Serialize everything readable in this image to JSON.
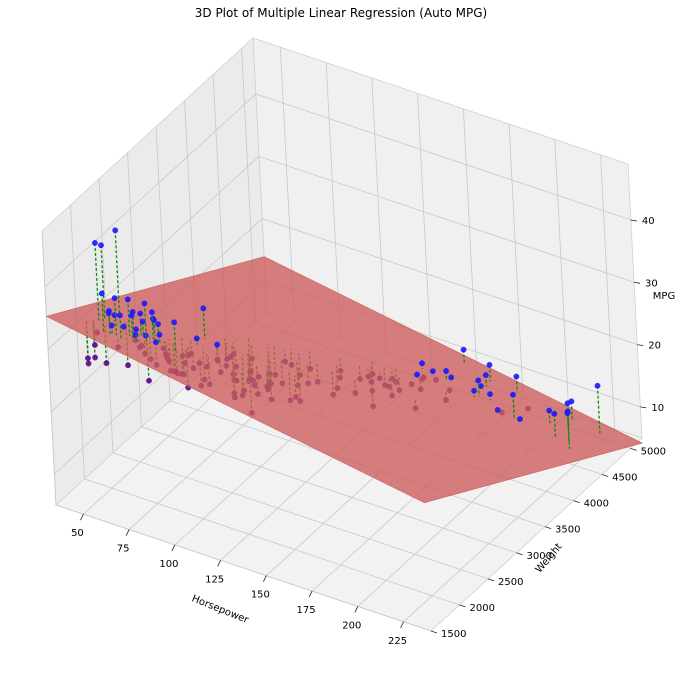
{
  "chart_data": {
    "type": "scatter",
    "title": "3D Plot of Multiple Linear Regression (Auto MPG)",
    "xlabel": "Horsepower",
    "ylabel": "Weight",
    "zlabel": "MPG",
    "xlim": [
      35,
      240
    ],
    "ylim": [
      1500,
      5200
    ],
    "zlim": [
      5,
      49
    ],
    "x_ticks": [
      "50",
      "75",
      "100",
      "125",
      "150",
      "175",
      "200",
      "225"
    ],
    "y_ticks": [
      "1500",
      "2000",
      "2500",
      "3000",
      "3500",
      "4000",
      "4500",
      "5000"
    ],
    "z_ticks": [
      "10",
      "20",
      "30",
      "40"
    ],
    "regression_plane": {
      "intercept": 45.64,
      "coef_horsepower": -0.0473,
      "coef_weight": -0.00579,
      "color": "#cd5c5c"
    },
    "series": [
      {
        "kind": "observed",
        "color_above": "#1a1aff",
        "color_below": "#5a0a8a",
        "points": [
          [
            46,
            1835,
            26
          ],
          [
            46,
            1950,
            26
          ],
          [
            48,
            2085,
            43.1
          ],
          [
            48,
            2335,
            43.4
          ],
          [
            48,
            1985,
            44.3
          ],
          [
            49,
            1867,
            29
          ],
          [
            52,
            2130,
            31.9
          ],
          [
            52,
            1649,
            29
          ],
          [
            52,
            2035,
            33
          ],
          [
            53,
            1795,
            32
          ],
          [
            53,
            1925,
            26
          ],
          [
            54,
            2254,
            23
          ],
          [
            58,
            1755,
            39.1
          ],
          [
            60,
            1800,
            36.1
          ],
          [
            60,
            1834,
            33.5
          ],
          [
            61,
            2003,
            32
          ],
          [
            62,
            1845,
            38
          ],
          [
            63,
            2125,
            29
          ],
          [
            65,
            1773,
            31
          ],
          [
            65,
            1975,
            37
          ],
          [
            65,
            2045,
            34.4
          ],
          [
            65,
            2380,
            30.5
          ],
          [
            66,
            1800,
            36
          ],
          [
            67,
            1963,
            34.7
          ],
          [
            67,
            2110,
            33.8
          ],
          [
            67,
            2145,
            32.2
          ],
          [
            68,
            1985,
            31.5
          ],
          [
            68,
            2155,
            30
          ],
          [
            68,
            2045,
            29
          ],
          [
            69,
            2189,
            26
          ],
          [
            70,
            1937,
            33
          ],
          [
            70,
            2070,
            28
          ],
          [
            70,
            2245,
            31.9
          ],
          [
            71,
            1990,
            30
          ],
          [
            71,
            2223,
            25
          ],
          [
            72,
            2050,
            24
          ],
          [
            72,
            2158,
            34.1
          ],
          [
            74,
            1980,
            37.2
          ],
          [
            74,
            2190,
            32.1
          ],
          [
            75,
            2108,
            30
          ],
          [
            75,
            2230,
            28
          ],
          [
            75,
            2265,
            26.8
          ],
          [
            75,
            2335,
            23.5
          ],
          [
            76,
            2144,
            31
          ],
          [
            76,
            2511,
            24.5
          ],
          [
            78,
            2188,
            27.2
          ],
          [
            78,
            2300,
            24
          ],
          [
            80,
            2164,
            27
          ],
          [
            80,
            2265,
            24.5
          ],
          [
            80,
            2542,
            25
          ],
          [
            82,
            2720,
            31
          ],
          [
            83,
            2202,
            25
          ],
          [
            84,
            2370,
            26.6
          ],
          [
            84,
            2525,
            28
          ],
          [
            85,
            2130,
            34
          ],
          [
            85,
            2310,
            22
          ],
          [
            85,
            2965,
            20
          ],
          [
            86,
            2220,
            25
          ],
          [
            88,
            2130,
            26
          ],
          [
            88,
            2500,
            22
          ],
          [
            88,
            2740,
            23
          ],
          [
            88,
            2890,
            22
          ],
          [
            90,
            2123,
            28
          ],
          [
            90,
            2264,
            26
          ],
          [
            90,
            2670,
            24
          ],
          [
            90,
            2950,
            22.5
          ],
          [
            90,
            3210,
            17.5
          ],
          [
            92,
            2434,
            25
          ],
          [
            92,
            2620,
            27
          ],
          [
            92,
            2865,
            20.2
          ],
          [
            95,
            2228,
            24
          ],
          [
            95,
            2372,
            23
          ],
          [
            95,
            2830,
            22
          ],
          [
            95,
            3102,
            21
          ],
          [
            96,
            2189,
            28
          ],
          [
            97,
            2506,
            24
          ],
          [
            97,
            2679,
            25
          ],
          [
            98,
            2945,
            19
          ],
          [
            100,
            2634,
            22
          ],
          [
            100,
            2789,
            19
          ],
          [
            100,
            2901,
            20
          ],
          [
            100,
            3233,
            18
          ],
          [
            100,
            3329,
            17
          ],
          [
            103,
            2830,
            22
          ],
          [
            105,
            2800,
            21
          ],
          [
            105,
            3070,
            18.5
          ],
          [
            105,
            3353,
            19.4
          ],
          [
            105,
            3459,
            18
          ],
          [
            107,
            2464,
            24
          ],
          [
            108,
            2391,
            22
          ],
          [
            110,
            2600,
            18
          ],
          [
            110,
            2720,
            20
          ],
          [
            110,
            2945,
            19.8
          ],
          [
            110,
            3139,
            18.2
          ],
          [
            110,
            3440,
            17
          ],
          [
            110,
            3620,
            16.5
          ],
          [
            112,
            2835,
            20
          ],
          [
            113,
            2234,
            24.5
          ],
          [
            113,
            2372,
            23
          ],
          [
            115,
            2595,
            24.3
          ],
          [
            115,
            2795,
            19
          ],
          [
            115,
            3245,
            17.5
          ],
          [
            116,
            2700,
            22
          ],
          [
            120,
            2957,
            18
          ],
          [
            120,
            3121,
            16.5
          ],
          [
            120,
            3270,
            18.1
          ],
          [
            120,
            3430,
            17
          ],
          [
            120,
            3820,
            15.5
          ],
          [
            122,
            2310,
            26
          ],
          [
            125,
            2900,
            19.5
          ],
          [
            125,
            3605,
            15
          ],
          [
            129,
            3410,
            16
          ],
          [
            130,
            3504,
            18
          ],
          [
            130,
            3840,
            15
          ],
          [
            130,
            4054,
            14
          ],
          [
            133,
            3940,
            14
          ],
          [
            135,
            3830,
            16
          ],
          [
            137,
            4042,
            13
          ],
          [
            139,
            3900,
            15.5
          ],
          [
            140,
            3449,
            17
          ],
          [
            140,
            3735,
            15
          ],
          [
            140,
            4080,
            14
          ],
          [
            140,
            4141,
            13
          ],
          [
            145,
            3870,
            15
          ],
          [
            145,
            4040,
            13
          ],
          [
            145,
            4440,
            14
          ],
          [
            148,
            4257,
            14
          ],
          [
            149,
            4335,
            13
          ],
          [
            150,
            3433,
            16
          ],
          [
            150,
            3761,
            15
          ],
          [
            150,
            4096,
            14
          ],
          [
            150,
            4464,
            13
          ],
          [
            150,
            4997,
            12
          ],
          [
            152,
            4215,
            14
          ],
          [
            153,
            4154,
            13
          ],
          [
            155,
            4360,
            13
          ],
          [
            158,
            4445,
            14
          ],
          [
            160,
            4464,
            13
          ],
          [
            165,
            3693,
            15
          ],
          [
            165,
            4209,
            12
          ],
          [
            165,
            4274,
            13
          ],
          [
            167,
            4906,
            12
          ],
          [
            170,
            4654,
            11
          ],
          [
            170,
            4746,
            12
          ],
          [
            175,
            4385,
            13
          ],
          [
            175,
            4464,
            14
          ],
          [
            180,
            4499,
            12
          ],
          [
            180,
            4955,
            11
          ],
          [
            190,
            4312,
            12
          ],
          [
            190,
            4382,
            11
          ],
          [
            193,
            4732,
            9
          ],
          [
            198,
            4341,
            15
          ],
          [
            200,
            4376,
            11
          ],
          [
            208,
            4633,
            11
          ],
          [
            210,
            4952,
            10
          ],
          [
            215,
            4735,
            12
          ],
          [
            220,
            4354,
            14
          ],
          [
            225,
            4425,
            14
          ],
          [
            225,
            4951,
            14
          ],
          [
            230,
            4278,
            16
          ]
        ]
      }
    ]
  }
}
